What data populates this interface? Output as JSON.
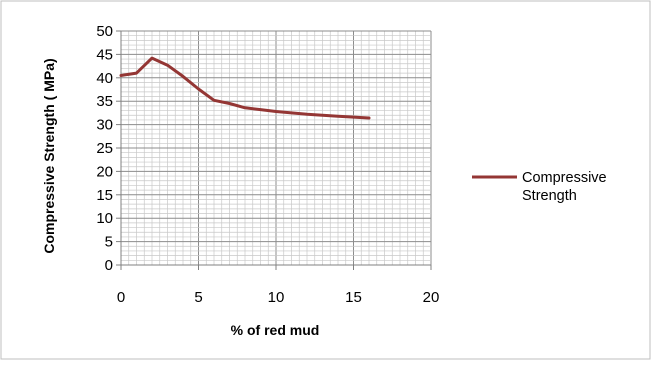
{
  "chart_data": {
    "type": "line",
    "title": "",
    "xlabel": "% of red mud",
    "ylabel": "Compressive Strength  ( MPa)",
    "xlim": [
      0,
      20
    ],
    "ylim": [
      0,
      50
    ],
    "x_ticks": [
      0,
      5,
      10,
      15,
      20
    ],
    "y_ticks": [
      0,
      5,
      10,
      15,
      20,
      25,
      30,
      35,
      40,
      45,
      50
    ],
    "grid": "on (major and minor)",
    "legend_position": "right",
    "series": [
      {
        "name": "Compressive Strength",
        "color": "#943634",
        "x": [
          0,
          1,
          2,
          3,
          4,
          5,
          6,
          7,
          8,
          9,
          10,
          11,
          12,
          13,
          14,
          15,
          16
        ],
        "values": [
          40.5,
          41,
          44.2,
          42.7,
          40.3,
          37.6,
          35.2,
          34.5,
          33.6,
          33.2,
          32.8,
          32.5,
          32.2,
          32,
          31.8,
          31.6,
          31.4
        ]
      }
    ]
  }
}
